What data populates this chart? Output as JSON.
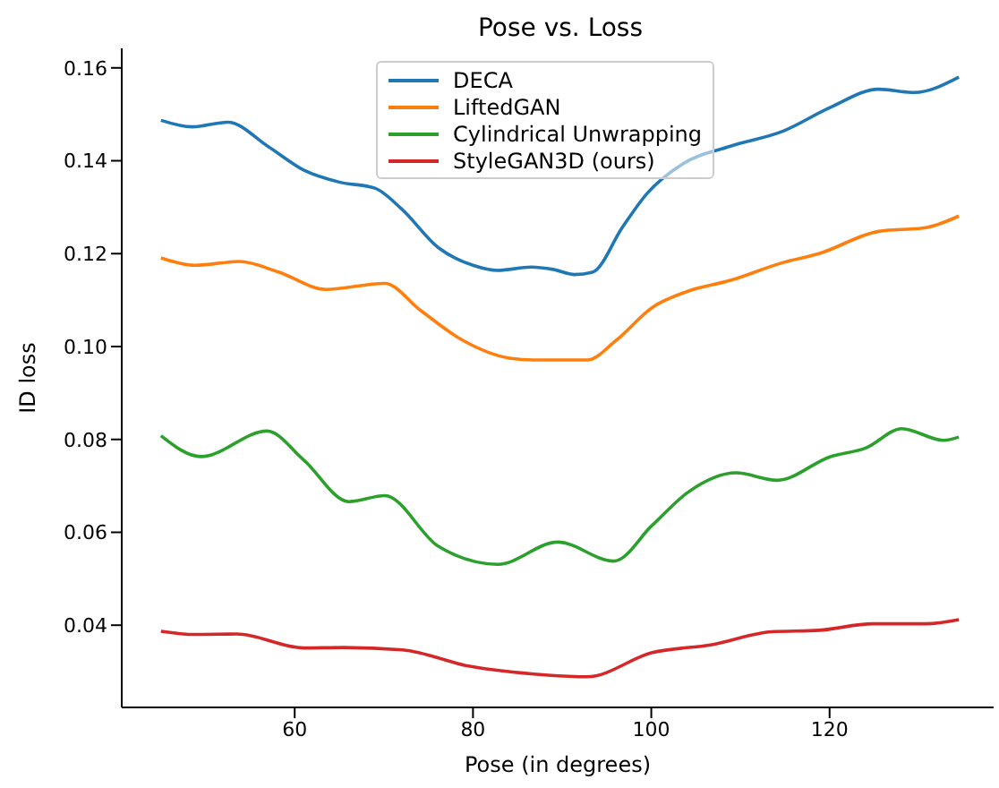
{
  "chart_data": {
    "type": "line",
    "title": "Pose vs. Loss",
    "xlabel": "Pose (in degrees)",
    "ylabel": "ID loss",
    "xlim": [
      40.6,
      138.4
    ],
    "xticks": [
      60,
      80,
      100,
      120
    ],
    "ylim": [
      0.0223,
      0.1642
    ],
    "yticks": [
      0.04,
      0.06,
      0.08,
      {
        "value": 0.1,
        "label": "0.10"
      },
      0.12,
      0.14,
      0.16
    ],
    "grid": false,
    "legend": "top",
    "marker": "none",
    "line_style": "solid",
    "series": [
      {
        "name": "DECA",
        "color": "#1f77b4",
        "x": [
          45,
          48.5,
          52.5,
          57,
          61,
          65,
          69,
          72,
          76.1,
          80,
          82.8,
          86.5,
          89,
          91.4,
          93.4,
          96.8,
          99.5,
          103.5,
          108.8,
          114.8,
          120.1,
          125.5,
          129.5,
          134.5
        ],
        "values": [
          0.1487,
          0.1473,
          0.1483,
          0.1431,
          0.138,
          0.1354,
          0.1341,
          0.1296,
          0.1213,
          0.1175,
          0.1164,
          0.1171,
          0.1166,
          0.1155,
          0.116,
          0.1258,
          0.1329,
          0.1393,
          0.1431,
          0.1464,
          0.1515,
          0.1554,
          0.1547,
          0.158
        ]
      },
      {
        "name": "LiftedGAN",
        "color": "#ff7f0e",
        "x": [
          45,
          48.8,
          53.8,
          58.1,
          63.5,
          70.1,
          74.1,
          78.8,
          84.1,
          86.8,
          92.8,
          96.1,
          100.1,
          104.1,
          108.8,
          114.8,
          118.8,
          125.5,
          130.8,
          134.5
        ],
        "values": [
          0.1191,
          0.1175,
          0.1183,
          0.1161,
          0.1123,
          0.1136,
          0.1078,
          0.1014,
          0.0975,
          0.0971,
          0.0971,
          0.1014,
          0.1084,
          0.1119,
          0.1142,
          0.1181,
          0.12,
          0.1248,
          0.1256,
          0.1281
        ]
      },
      {
        "name": "Cylindrical Unwrapping",
        "color": "#2ca02c",
        "x": [
          45,
          49.5,
          56.9,
          61,
          66.1,
          70.1,
          76.1,
          82.8,
          89.5,
          95.8,
          100.1,
          104.1,
          109.5,
          114.1,
          120.1,
          124.1,
          128.1,
          132.8,
          134.5
        ],
        "values": [
          0.0808,
          0.0763,
          0.0818,
          0.0756,
          0.0666,
          0.0679,
          0.057,
          0.0531,
          0.0579,
          0.0538,
          0.0615,
          0.0686,
          0.0728,
          0.0712,
          0.0763,
          0.0782,
          0.0823,
          0.0798,
          0.0805
        ]
      },
      {
        "name": "StyleGAN3D (ours)",
        "color": "#d62728",
        "x": [
          45,
          48.8,
          53.5,
          61,
          65.5,
          72.1,
          79.5,
          88.1,
          92.8,
          100.1,
          106.8,
          113.5,
          118.8,
          124.8,
          130.8,
          134.5
        ],
        "values": [
          0.0387,
          0.038,
          0.0381,
          0.0351,
          0.0352,
          0.0347,
          0.0312,
          0.0293,
          0.0289,
          0.0341,
          0.0358,
          0.0386,
          0.0389,
          0.0403,
          0.0403,
          0.0412
        ]
      }
    ]
  }
}
